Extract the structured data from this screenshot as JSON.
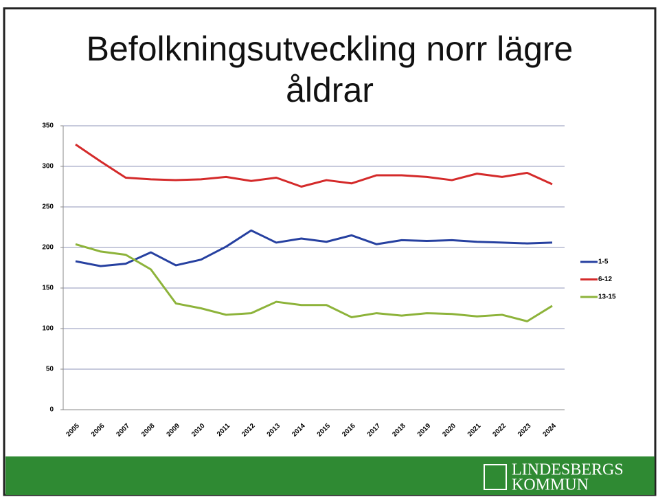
{
  "chart_data": {
    "type": "line",
    "title": "Befolkningsutveckling norr lägre åldrar",
    "categories": [
      "2005",
      "2006",
      "2007",
      "2008",
      "2009",
      "2010",
      "2011",
      "2012",
      "2013",
      "2014",
      "2015",
      "2016",
      "2017",
      "2018",
      "2019",
      "2020",
      "2021",
      "2022",
      "2023",
      "2024"
    ],
    "series": [
      {
        "name": "1-5",
        "color": "#2640a0",
        "values": [
          183,
          177,
          180,
          194,
          178,
          185,
          201,
          221,
          206,
          211,
          207,
          215,
          204,
          209,
          208,
          209,
          207,
          206,
          205,
          206
        ]
      },
      {
        "name": "6-12",
        "color": "#d42a2a",
        "values": [
          327,
          306,
          286,
          284,
          283,
          284,
          287,
          282,
          286,
          275,
          283,
          279,
          289,
          289,
          287,
          283,
          291,
          287,
          292,
          278
        ]
      },
      {
        "name": "13-15",
        "color": "#8db33a",
        "values": [
          204,
          195,
          191,
          173,
          131,
          125,
          117,
          119,
          133,
          129,
          129,
          114,
          119,
          116,
          119,
          118,
          115,
          117,
          109,
          128
        ]
      }
    ],
    "ylim": [
      0,
      350
    ],
    "yticks": [
      0,
      50,
      100,
      150,
      200,
      250,
      300,
      350
    ],
    "grid": true,
    "legend": "right"
  },
  "logo": [
    "LINDESBERGS",
    "KOMMUN"
  ]
}
